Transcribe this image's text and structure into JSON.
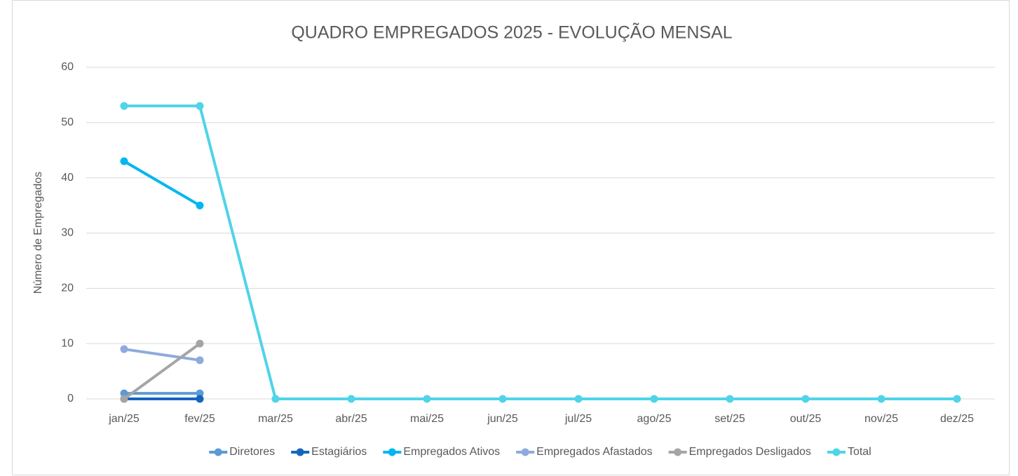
{
  "chart_data": {
    "type": "line",
    "title": "QUADRO EMPREGADOS 2025 - EVOLUÇÃO MENSAL",
    "y_label": "Número de Empregados",
    "categories": [
      "jan/25",
      "fev/25",
      "mar/25",
      "abr/25",
      "mai/25",
      "jun/25",
      "jul/25",
      "ago/25",
      "set/25",
      "out/25",
      "nov/25",
      "dez/25"
    ],
    "series": [
      {
        "name": "Diretores",
        "color": "#5b9bd5",
        "values": [
          1,
          1,
          null,
          null,
          null,
          null,
          null,
          null,
          null,
          null,
          null,
          null
        ]
      },
      {
        "name": "Estagiários",
        "color": "#1565c0",
        "values": [
          0,
          0,
          null,
          null,
          null,
          null,
          null,
          null,
          null,
          null,
          null,
          null
        ]
      },
      {
        "name": "Empregados Ativos",
        "color": "#00b7ef",
        "values": [
          43,
          35,
          null,
          null,
          null,
          null,
          null,
          null,
          null,
          null,
          null,
          null
        ]
      },
      {
        "name": "Empregados Afastados",
        "color": "#8faadc",
        "values": [
          9,
          7,
          null,
          null,
          null,
          null,
          null,
          null,
          null,
          null,
          null,
          null
        ]
      },
      {
        "name": "Empregados Desligados",
        "color": "#a5a5a5",
        "values": [
          0,
          10,
          null,
          null,
          null,
          null,
          null,
          null,
          null,
          null,
          null,
          null
        ]
      },
      {
        "name": "Total",
        "color": "#4fd4e8",
        "values": [
          53,
          53,
          0,
          0,
          0,
          0,
          0,
          0,
          0,
          0,
          0,
          0
        ]
      }
    ],
    "ylim": [
      0,
      60
    ],
    "yticks": [
      0,
      10,
      20,
      30,
      40,
      50,
      60
    ],
    "grid": true,
    "legend": "bottom"
  }
}
